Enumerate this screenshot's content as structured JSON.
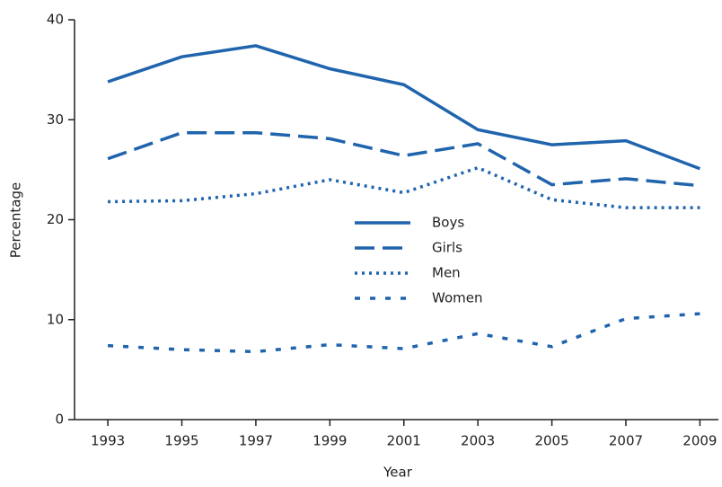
{
  "chart_data": {
    "type": "line",
    "x": [
      1993,
      1995,
      1997,
      1999,
      2001,
      2003,
      2005,
      2007,
      2009
    ],
    "xlabel": "Year",
    "ylabel": "Percentage",
    "xlim": [
      1992.1,
      2009.5
    ],
    "xticks": [
      1993,
      1995,
      1997,
      1999,
      2001,
      2003,
      2005,
      2007,
      2009
    ],
    "ylim": [
      0,
      40
    ],
    "yticks": [
      0,
      10,
      20,
      30,
      40
    ],
    "legend": "center",
    "series": [
      {
        "name": "Boys",
        "color": "#1f64ad",
        "dash": "solid",
        "values": [
          33.8,
          36.3,
          37.4,
          35.1,
          33.5,
          29.0,
          27.5,
          27.9,
          25.1
        ]
      },
      {
        "name": "Girls",
        "color": "#1f64ad",
        "dash": "dashed",
        "values": [
          26.1,
          28.7,
          28.7,
          28.1,
          26.4,
          27.6,
          23.5,
          24.1,
          23.4
        ]
      },
      {
        "name": "Men",
        "color": "#1f64ad",
        "dash": "dotted",
        "values": [
          21.8,
          21.9,
          22.6,
          24.0,
          22.7,
          25.2,
          22.0,
          21.2,
          21.2
        ]
      },
      {
        "name": "Women",
        "color": "#1f64ad",
        "dash": "short-dashed",
        "values": [
          7.4,
          7.0,
          6.8,
          7.5,
          7.1,
          8.6,
          7.3,
          10.1,
          10.6
        ]
      }
    ]
  }
}
